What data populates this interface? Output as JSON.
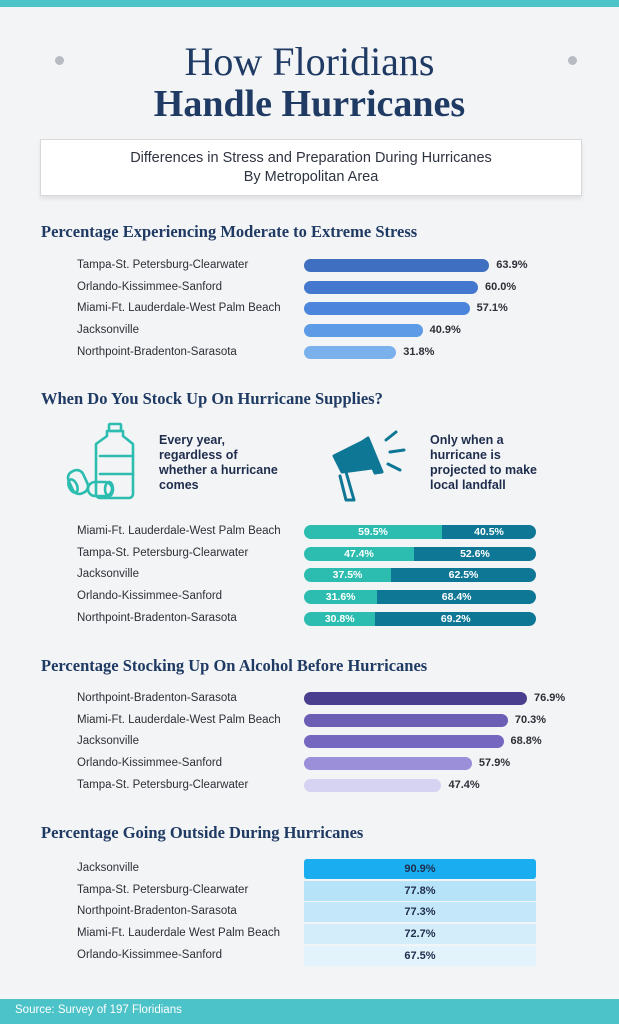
{
  "title_line1": "How Floridians",
  "title_line2": "Handle Hurricanes",
  "subtitle_line1": "Differences in Stress and Preparation During Hurricanes",
  "subtitle_line2": "By Metropolitan Area",
  "source": "Source: Survey of 197 Floridians",
  "colors": {
    "accent": "#4cc3c9",
    "stress": [
      "#3f6fc0",
      "#4478cf",
      "#4b85dc",
      "#5d9be6",
      "#7ab0ec"
    ],
    "supplies_every_year": "#2dbdb0",
    "supplies_landfall": "#0f7796",
    "alcohol": [
      "#4a3f8e",
      "#6b5eb4",
      "#7567bf",
      "#9a8fd8",
      "#d6d3f2"
    ],
    "outside": [
      "#1aaef0",
      "#b7e3f8",
      "#c4e8f9",
      "#d3eefa",
      "#e2f3fb"
    ]
  },
  "legend": {
    "every_year": "Every year, regardless of whether a hurricane comes",
    "landfall": "Only when a hurricane is projected to make local landfall",
    "every_year_icon": "water-jug-and-cans-icon",
    "landfall_icon": "megaphone-icon"
  },
  "chart_data": [
    {
      "type": "bar",
      "title": "Percentage Experiencing Moderate to Extreme Stress",
      "categories": [
        "Tampa-St. Petersburg-Clearwater",
        "Orlando-Kissimmee-Sanford",
        "Miami-Ft. Lauderdale-West Palm Beach",
        "Jacksonville",
        "Northpoint-Bradenton-Sarasota"
      ],
      "values": [
        63.9,
        60.0,
        57.1,
        40.9,
        31.8
      ],
      "labels": [
        "63.9%",
        "60.0%",
        "57.1%",
        "40.9%",
        "31.8%"
      ],
      "xlim": [
        0,
        100
      ]
    },
    {
      "type": "bar",
      "title": "When Do You Stock Up On Hurricane Supplies?",
      "stacked": true,
      "categories": [
        "Miami-Ft. Lauderdale-West Palm Beach",
        "Tampa-St. Petersburg-Clearwater",
        "Jacksonville",
        "Orlando-Kissimmee-Sanford",
        "Northpoint-Bradenton-Sarasota"
      ],
      "series": [
        {
          "name": "Every year, regardless of whether a hurricane comes",
          "values": [
            59.5,
            47.4,
            37.5,
            31.6,
            30.8
          ],
          "labels": [
            "59.5%",
            "47.4%",
            "37.5%",
            "31.6%",
            "30.8%"
          ]
        },
        {
          "name": "Only when a hurricane is projected to make local landfall",
          "values": [
            40.5,
            52.6,
            62.5,
            68.4,
            69.2
          ],
          "labels": [
            "40.5%",
            "52.6%",
            "62.5%",
            "68.4%",
            "69.2%"
          ]
        }
      ]
    },
    {
      "type": "bar",
      "title": "Percentage Stocking Up On Alcohol Before Hurricanes",
      "categories": [
        "Northpoint-Bradenton-Sarasota",
        "Miami-Ft. Lauderdale-West Palm Beach",
        "Jacksonville",
        "Orlando-Kissimmee-Sanford",
        "Tampa-St. Petersburg-Clearwater"
      ],
      "values": [
        76.9,
        70.3,
        68.8,
        57.9,
        47.4
      ],
      "labels": [
        "76.9%",
        "70.3%",
        "68.8%",
        "57.9%",
        "47.4%"
      ],
      "xlim": [
        0,
        100
      ]
    },
    {
      "type": "table",
      "title": "Percentage Going Outside During Hurricanes",
      "categories": [
        "Jacksonville",
        "Tampa-St. Petersburg-Clearwater",
        "Northpoint-Bradenton-Sarasota",
        "Miami-Ft. Lauderdale West Palm Beach",
        "Orlando-Kissimmee-Sanford"
      ],
      "values": [
        90.9,
        77.8,
        77.3,
        72.7,
        67.5
      ],
      "labels": [
        "90.9%",
        "77.8%",
        "77.3%",
        "72.7%",
        "67.5%"
      ]
    }
  ]
}
